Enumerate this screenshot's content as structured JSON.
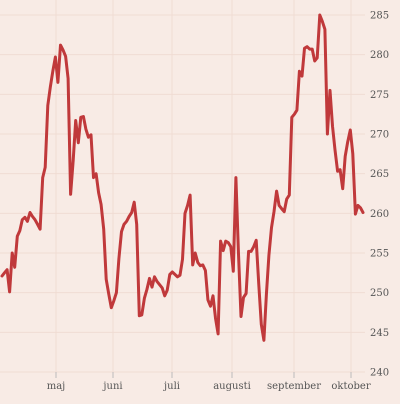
{
  "colors": {
    "background": "#f8ebe5",
    "grid": "#f0dcd3",
    "line": "#c0393b",
    "text": "#555555"
  },
  "chart_data": {
    "type": "line",
    "title": "",
    "xlabel": "",
    "ylabel": "",
    "grid": true,
    "y_axis_side": "right",
    "ylim": [
      240,
      285
    ],
    "y_ticks": [
      240,
      245,
      250,
      255,
      260,
      265,
      270,
      275,
      280,
      285
    ],
    "y_tick_labels": [
      "240",
      "245",
      "250",
      "255",
      "260",
      "265",
      "270",
      "275",
      "280",
      "285"
    ],
    "x_ticks": [
      "maj",
      "juni",
      "juli",
      "augusti",
      "september",
      "oktober"
    ],
    "series": [
      {
        "values": [
          252.1,
          252.5,
          252.9,
          250.1,
          255.0,
          253.2,
          257.1,
          257.8,
          259.2,
          259.5,
          259.0,
          260.1,
          259.6,
          259.2,
          258.6,
          258.0,
          264.5,
          265.8,
          273.6,
          275.9,
          277.9,
          279.7,
          276.5,
          281.2,
          280.6,
          279.8,
          277.0,
          262.4,
          266.7,
          271.7,
          268.9,
          272.1,
          272.2,
          270.6,
          269.6,
          269.9,
          264.5,
          265.0,
          262.6,
          261.1,
          258.0,
          251.7,
          249.8,
          248.1,
          249.0,
          250.0,
          254.3,
          257.7,
          258.6,
          259.0,
          259.6,
          260.1,
          261.4,
          258.6,
          247.1,
          247.2,
          249.3,
          250.4,
          251.8,
          250.7,
          252.0,
          251.4,
          251.0,
          250.6,
          249.6,
          250.3,
          252.3,
          252.6,
          252.3,
          252.0,
          252.2,
          254.2,
          260.0,
          261.0,
          262.3,
          253.5,
          255.0,
          253.8,
          253.4,
          253.5,
          252.8,
          249.1,
          248.3,
          249.6,
          246.8,
          244.8,
          256.5,
          255.3,
          256.5,
          256.3,
          255.8,
          252.7,
          264.5,
          255.2,
          247.0,
          249.4,
          249.9,
          255.2,
          255.2,
          255.8,
          256.6,
          251.0,
          246.0,
          244.0,
          249.8,
          254.7,
          258.2,
          260.2,
          262.8,
          261.0,
          260.6,
          260.2,
          261.8,
          262.3,
          272.1,
          272.5,
          273.0,
          277.9,
          277.3,
          280.8,
          281.0,
          280.7,
          280.7,
          279.2,
          279.6,
          285.0,
          284.2,
          283.2,
          270.0,
          275.5,
          271.0,
          268.0,
          265.3,
          265.5,
          263.1,
          267.2,
          269.0,
          270.5,
          267.5,
          259.9,
          261.0,
          260.7,
          260.1
        ]
      }
    ]
  }
}
